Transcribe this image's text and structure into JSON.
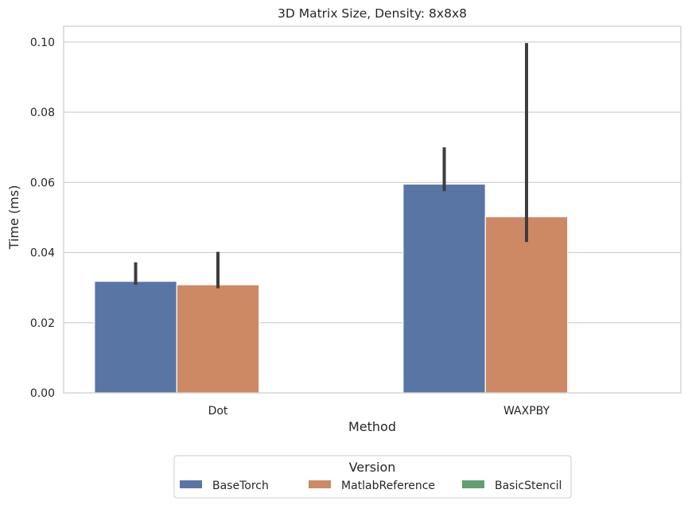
{
  "chart_data": {
    "type": "bar",
    "title": "3D Matrix Size, Density: 8x8x8",
    "xlabel": "Method",
    "ylabel": "Time (ms)",
    "categories": [
      "Dot",
      "WAXPBY"
    ],
    "ylim": [
      0,
      0.1045
    ],
    "yticks": [
      "0.00",
      "0.02",
      "0.04",
      "0.06",
      "0.08",
      "0.10"
    ],
    "grid": true,
    "series": [
      {
        "name": "BaseTorch",
        "color": "#5875a4",
        "values": [
          0.0318,
          0.0595
        ],
        "err_low": [
          0.0308,
          0.0575
        ],
        "err_high": [
          0.0372,
          0.07
        ]
      },
      {
        "name": "MatlabReference",
        "color": "#cc8963",
        "values": [
          0.0308,
          0.0502
        ],
        "err_low": [
          0.0298,
          0.043
        ],
        "err_high": [
          0.0402,
          0.0997
        ]
      },
      {
        "name": "BasicStencil",
        "color": "#5f9e6e",
        "values": [
          null,
          null
        ],
        "err_low": [
          null,
          null
        ],
        "err_high": [
          null,
          null
        ]
      }
    ],
    "legend": {
      "title": "Version",
      "placement": "bottom-center"
    }
  }
}
